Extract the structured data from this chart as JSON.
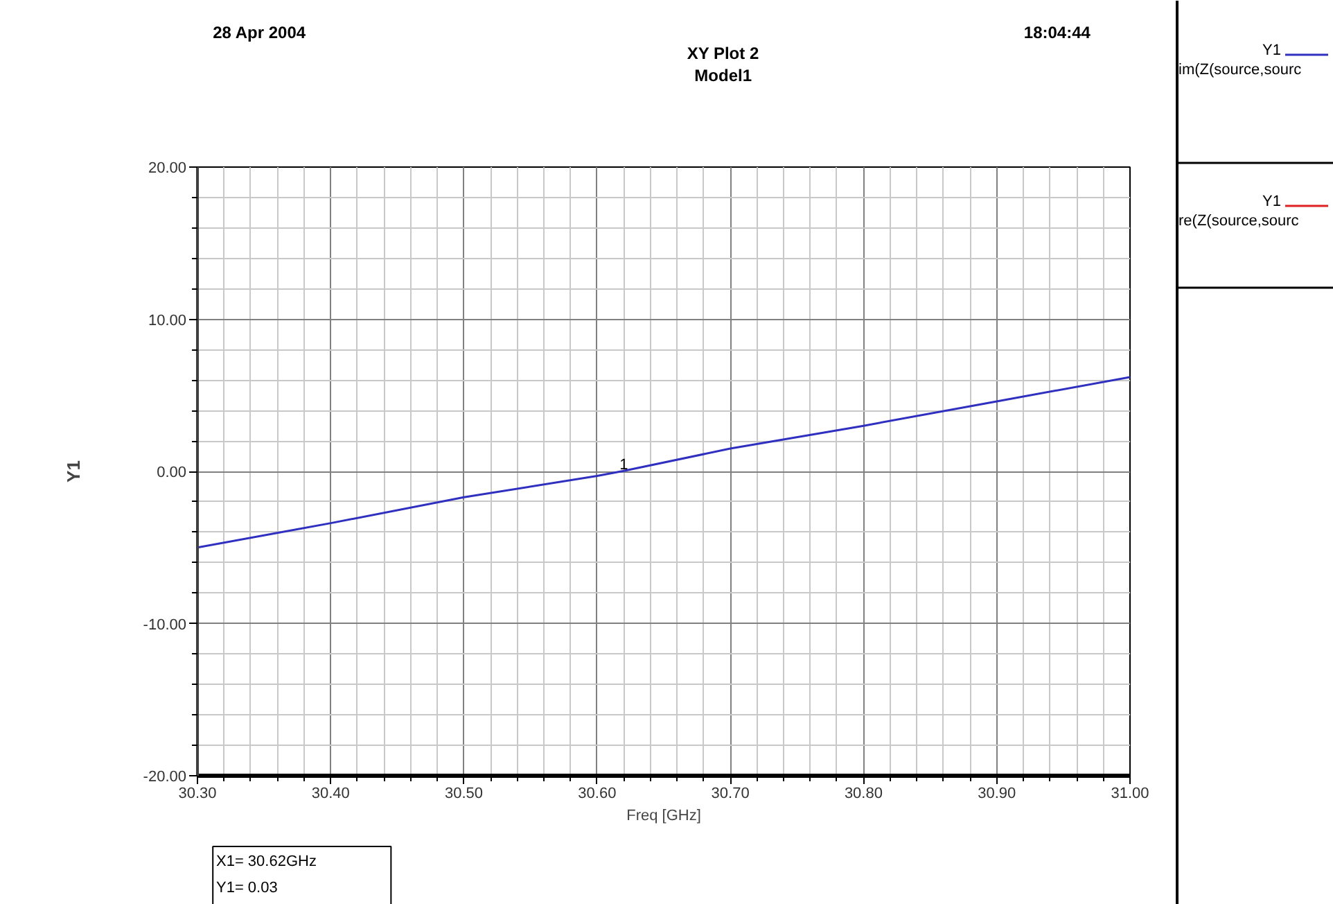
{
  "chart_data": {
    "type": "line",
    "title": "XY Plot 2",
    "subtitle": "Model1",
    "xlabel": "Freq [GHz]",
    "ylabel": "Y1",
    "x": [
      30.3,
      30.4,
      30.5,
      30.6,
      30.62,
      30.7,
      30.8,
      30.9,
      31.0
    ],
    "series": [
      {
        "name": "im(Z(source,sourc",
        "color": "#3030c0",
        "values": [
          -5.0,
          -3.4,
          -1.7,
          -0.3,
          0.03,
          1.5,
          3.0,
          4.6,
          6.2
        ]
      },
      {
        "name": "re(Z(source,sourc",
        "color": "#e02020",
        "values": [
          null,
          null,
          null,
          null,
          null,
          null,
          null,
          null,
          null
        ]
      }
    ],
    "xlim": [
      30.3,
      31.0
    ],
    "ylim": [
      -20,
      20
    ],
    "xticks": [
      {
        "value": 30.3,
        "label": "30.30"
      },
      {
        "value": 30.4,
        "label": "30.40"
      },
      {
        "value": 30.5,
        "label": "30.50"
      },
      {
        "value": 30.6,
        "label": "30.60"
      },
      {
        "value": 30.7,
        "label": "30.70"
      },
      {
        "value": 30.8,
        "label": "30.80"
      },
      {
        "value": 30.9,
        "label": "30.90"
      },
      {
        "value": 31.0,
        "label": "31.00"
      }
    ],
    "yticks": [
      {
        "value": -20,
        "label": "-20.00"
      },
      {
        "value": -10,
        "label": "-10.00"
      },
      {
        "value": 0,
        "label": "0.00"
      },
      {
        "value": 10,
        "label": "10.00"
      },
      {
        "value": 20,
        "label": "20.00"
      }
    ],
    "grid": true,
    "legend": "right",
    "annotations": [
      "28 Apr 2004",
      "18:04:44",
      {
        "text": "1",
        "x": 30.62,
        "y": 0.03
      },
      "X1= 30.62GHz",
      "Y1= 0.03"
    ]
  }
}
